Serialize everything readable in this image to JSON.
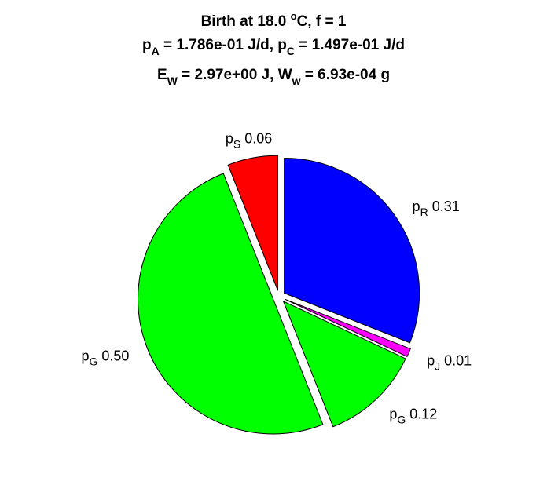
{
  "chart_data": {
    "type": "pie",
    "title": {
      "line1": {
        "pre": "Birth at 18.0 ",
        "sup": "o",
        "post": "C, f = 1"
      },
      "line2": {
        "a_base": "p",
        "a_sub": "A",
        "a_val": " = 1.786e-01 J/d, ",
        "c_base": "p",
        "c_sub": "C",
        "c_val": " = 1.497e-01 J/d"
      },
      "line3": {
        "e_base": "E",
        "e_sub": "W",
        "e_val": " = 2.97e+00 J, ",
        "w_base": "W",
        "w_sub": "w",
        "w_val": " = 6.93e-04 g"
      }
    },
    "slices": [
      {
        "base": "p",
        "sub": "R",
        "value_label": "0.31",
        "value": 0.31,
        "color": "#0000ff"
      },
      {
        "base": "p",
        "sub": "J",
        "value_label": "0.01",
        "value": 0.01,
        "color": "#ff00ff"
      },
      {
        "base": "p",
        "sub": "G",
        "value_label": "0.12",
        "value": 0.12,
        "color": "#00ff00"
      },
      {
        "base": "p",
        "sub": "G",
        "value_label": "0.50",
        "value": 0.5,
        "color": "#00ff00"
      },
      {
        "base": "p",
        "sub": "S",
        "value_label": "0.06",
        "value": 0.06,
        "color": "#ff0000"
      }
    ],
    "exploded": true,
    "start": "12 o'clock",
    "direction": "clockwise"
  }
}
